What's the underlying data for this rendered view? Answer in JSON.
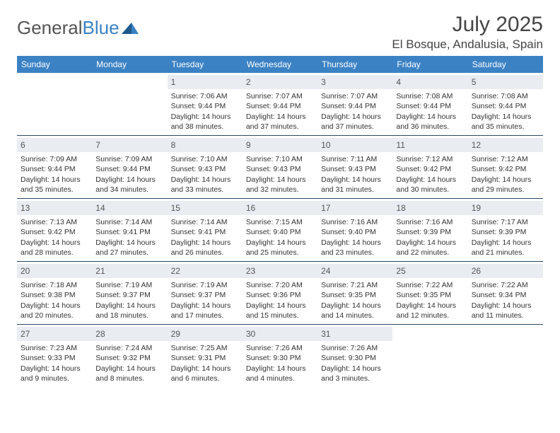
{
  "brand": {
    "text1": "General",
    "text2": "Blue"
  },
  "title": "July 2025",
  "location": "El Bosque, Andalusia, Spain",
  "colors": {
    "header_bg": "#3b82c4",
    "header_text": "#ffffff",
    "daynum_bg": "#e9edf1",
    "rule": "#2a4a66",
    "body_text": "#333333",
    "background": "#ffffff"
  },
  "weekdays": [
    "Sunday",
    "Monday",
    "Tuesday",
    "Wednesday",
    "Thursday",
    "Friday",
    "Saturday"
  ],
  "weeks": [
    [
      null,
      null,
      {
        "n": "1",
        "sr": "Sunrise: 7:06 AM",
        "ss": "Sunset: 9:44 PM",
        "dl": "Daylight: 14 hours and 38 minutes."
      },
      {
        "n": "2",
        "sr": "Sunrise: 7:07 AM",
        "ss": "Sunset: 9:44 PM",
        "dl": "Daylight: 14 hours and 37 minutes."
      },
      {
        "n": "3",
        "sr": "Sunrise: 7:07 AM",
        "ss": "Sunset: 9:44 PM",
        "dl": "Daylight: 14 hours and 37 minutes."
      },
      {
        "n": "4",
        "sr": "Sunrise: 7:08 AM",
        "ss": "Sunset: 9:44 PM",
        "dl": "Daylight: 14 hours and 36 minutes."
      },
      {
        "n": "5",
        "sr": "Sunrise: 7:08 AM",
        "ss": "Sunset: 9:44 PM",
        "dl": "Daylight: 14 hours and 35 minutes."
      }
    ],
    [
      {
        "n": "6",
        "sr": "Sunrise: 7:09 AM",
        "ss": "Sunset: 9:44 PM",
        "dl": "Daylight: 14 hours and 35 minutes."
      },
      {
        "n": "7",
        "sr": "Sunrise: 7:09 AM",
        "ss": "Sunset: 9:44 PM",
        "dl": "Daylight: 14 hours and 34 minutes."
      },
      {
        "n": "8",
        "sr": "Sunrise: 7:10 AM",
        "ss": "Sunset: 9:43 PM",
        "dl": "Daylight: 14 hours and 33 minutes."
      },
      {
        "n": "9",
        "sr": "Sunrise: 7:10 AM",
        "ss": "Sunset: 9:43 PM",
        "dl": "Daylight: 14 hours and 32 minutes."
      },
      {
        "n": "10",
        "sr": "Sunrise: 7:11 AM",
        "ss": "Sunset: 9:43 PM",
        "dl": "Daylight: 14 hours and 31 minutes."
      },
      {
        "n": "11",
        "sr": "Sunrise: 7:12 AM",
        "ss": "Sunset: 9:42 PM",
        "dl": "Daylight: 14 hours and 30 minutes."
      },
      {
        "n": "12",
        "sr": "Sunrise: 7:12 AM",
        "ss": "Sunset: 9:42 PM",
        "dl": "Daylight: 14 hours and 29 minutes."
      }
    ],
    [
      {
        "n": "13",
        "sr": "Sunrise: 7:13 AM",
        "ss": "Sunset: 9:42 PM",
        "dl": "Daylight: 14 hours and 28 minutes."
      },
      {
        "n": "14",
        "sr": "Sunrise: 7:14 AM",
        "ss": "Sunset: 9:41 PM",
        "dl": "Daylight: 14 hours and 27 minutes."
      },
      {
        "n": "15",
        "sr": "Sunrise: 7:14 AM",
        "ss": "Sunset: 9:41 PM",
        "dl": "Daylight: 14 hours and 26 minutes."
      },
      {
        "n": "16",
        "sr": "Sunrise: 7:15 AM",
        "ss": "Sunset: 9:40 PM",
        "dl": "Daylight: 14 hours and 25 minutes."
      },
      {
        "n": "17",
        "sr": "Sunrise: 7:16 AM",
        "ss": "Sunset: 9:40 PM",
        "dl": "Daylight: 14 hours and 23 minutes."
      },
      {
        "n": "18",
        "sr": "Sunrise: 7:16 AM",
        "ss": "Sunset: 9:39 PM",
        "dl": "Daylight: 14 hours and 22 minutes."
      },
      {
        "n": "19",
        "sr": "Sunrise: 7:17 AM",
        "ss": "Sunset: 9:39 PM",
        "dl": "Daylight: 14 hours and 21 minutes."
      }
    ],
    [
      {
        "n": "20",
        "sr": "Sunrise: 7:18 AM",
        "ss": "Sunset: 9:38 PM",
        "dl": "Daylight: 14 hours and 20 minutes."
      },
      {
        "n": "21",
        "sr": "Sunrise: 7:19 AM",
        "ss": "Sunset: 9:37 PM",
        "dl": "Daylight: 14 hours and 18 minutes."
      },
      {
        "n": "22",
        "sr": "Sunrise: 7:19 AM",
        "ss": "Sunset: 9:37 PM",
        "dl": "Daylight: 14 hours and 17 minutes."
      },
      {
        "n": "23",
        "sr": "Sunrise: 7:20 AM",
        "ss": "Sunset: 9:36 PM",
        "dl": "Daylight: 14 hours and 15 minutes."
      },
      {
        "n": "24",
        "sr": "Sunrise: 7:21 AM",
        "ss": "Sunset: 9:35 PM",
        "dl": "Daylight: 14 hours and 14 minutes."
      },
      {
        "n": "25",
        "sr": "Sunrise: 7:22 AM",
        "ss": "Sunset: 9:35 PM",
        "dl": "Daylight: 14 hours and 12 minutes."
      },
      {
        "n": "26",
        "sr": "Sunrise: 7:22 AM",
        "ss": "Sunset: 9:34 PM",
        "dl": "Daylight: 14 hours and 11 minutes."
      }
    ],
    [
      {
        "n": "27",
        "sr": "Sunrise: 7:23 AM",
        "ss": "Sunset: 9:33 PM",
        "dl": "Daylight: 14 hours and 9 minutes."
      },
      {
        "n": "28",
        "sr": "Sunrise: 7:24 AM",
        "ss": "Sunset: 9:32 PM",
        "dl": "Daylight: 14 hours and 8 minutes."
      },
      {
        "n": "29",
        "sr": "Sunrise: 7:25 AM",
        "ss": "Sunset: 9:31 PM",
        "dl": "Daylight: 14 hours and 6 minutes."
      },
      {
        "n": "30",
        "sr": "Sunrise: 7:26 AM",
        "ss": "Sunset: 9:30 PM",
        "dl": "Daylight: 14 hours and 4 minutes."
      },
      {
        "n": "31",
        "sr": "Sunrise: 7:26 AM",
        "ss": "Sunset: 9:30 PM",
        "dl": "Daylight: 14 hours and 3 minutes."
      },
      null,
      null
    ]
  ]
}
